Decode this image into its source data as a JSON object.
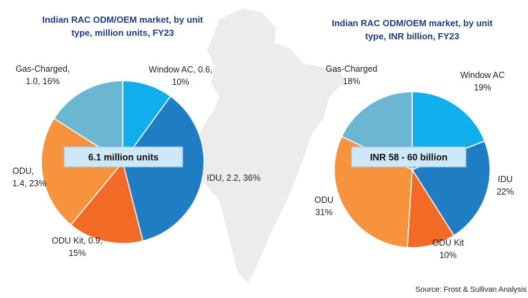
{
  "chart_data": [
    {
      "type": "pie",
      "title": "Indian RAC ODM/OEM market, by unit type, million units, FY23",
      "annotation": "6.1 million units",
      "values": [
        10,
        36,
        15,
        23,
        16
      ],
      "value_labels": [
        "Window AC, 0.6,\n10%",
        "IDU, 2.2, 36%",
        "ODU Kit, 0.9,\n15%",
        "ODU,\n1.4, 23%",
        "Gas-Charged,\n1.0, 16%"
      ],
      "colors": [
        "#10aeea",
        "#1f7dc4",
        "#f26a26",
        "#f7933c",
        "#6bb7d3"
      ]
    },
    {
      "type": "pie",
      "title": "Indian RAC ODM/OEM market, by unit type, INR billion, FY23",
      "annotation": "INR 58 - 60 billion",
      "values": [
        19,
        22,
        10,
        31,
        18
      ],
      "value_labels": [
        "Window AC\n19%",
        "IDU\n22%",
        "ODU Kit\n10%",
        "ODU\n31%",
        "Gas-Charged\n18%"
      ],
      "colors": [
        "#10aeea",
        "#1f7dc4",
        "#f26a26",
        "#f7933c",
        "#6bb7d3"
      ]
    }
  ],
  "source": "Source: Frost & Sullivan Analysis"
}
